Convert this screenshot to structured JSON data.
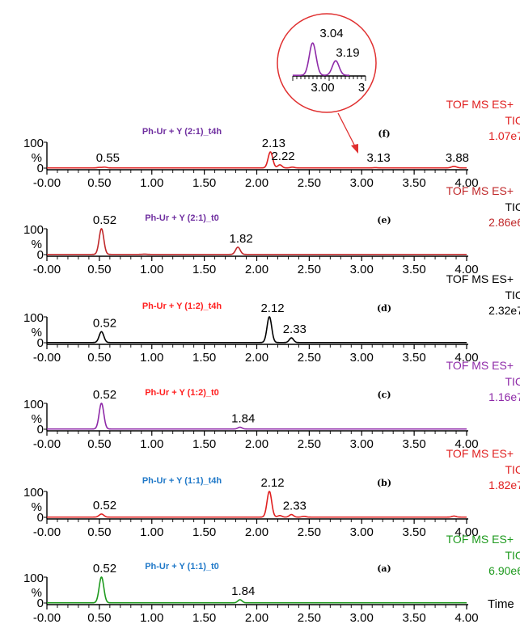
{
  "chart_data": [
    {
      "type": "line",
      "panel": "(f)",
      "title": "Ph-Ur + Y (2:1)_t4h",
      "title_color": "#7030a0",
      "trace_color": "#e02020",
      "detector": [
        "TOF MS ES+",
        "TIC",
        "1.07e7"
      ],
      "detector_colors": [
        "#e02020",
        "#e02020",
        "#e02020"
      ],
      "peaks": [
        {
          "x": 0.5,
          "y": 2,
          "w": 0.02
        },
        {
          "x": 0.55,
          "y": 3,
          "w": 0.02
        },
        {
          "x": 2.13,
          "y": 62,
          "w": 0.022
        },
        {
          "x": 2.22,
          "y": 12,
          "w": 0.02
        },
        {
          "x": 2.34,
          "y": 3,
          "w": 0.02
        },
        {
          "x": 3.13,
          "y": 1,
          "w": 0.02
        },
        {
          "x": 3.88,
          "y": 6,
          "w": 0.025
        }
      ],
      "peak_labels": [
        {
          "x": 0.55,
          "text": "0.55"
        },
        {
          "x": 2.13,
          "text": "2.13"
        },
        {
          "x": 2.22,
          "text": "2.22"
        },
        {
          "x": 3.13,
          "text": "3.13"
        },
        {
          "x": 3.88,
          "text": "3.88"
        }
      ],
      "inset": {
        "peaks": [
          {
            "x": 3.04,
            "y": 100
          },
          {
            "x": 3.19,
            "y": 45
          }
        ],
        "peak_labels": [
          "3.04",
          "3.19"
        ],
        "tick_labels": [
          "3.00",
          "3"
        ]
      }
    },
    {
      "type": "line",
      "panel": "(e)",
      "title": "Ph-Ur + Y (2:1)_t0",
      "title_color": "#7030a0",
      "trace_color": "#c0282a",
      "detector": [
        "TOF MS ES+",
        "TIC",
        "2.86e6"
      ],
      "detector_colors": [
        "#c0282a",
        "#000000",
        "#c0282a"
      ],
      "peaks": [
        {
          "x": 0.52,
          "y": 100,
          "w": 0.022
        },
        {
          "x": 0.93,
          "y": 1,
          "w": 0.02
        },
        {
          "x": 1.82,
          "y": 28,
          "w": 0.022
        }
      ],
      "peak_labels": [
        {
          "x": 0.52,
          "text": "0.52"
        },
        {
          "x": 1.82,
          "text": "1.82"
        }
      ]
    },
    {
      "type": "line",
      "panel": "(d)",
      "title": "Ph-Ur + Y (1:2)_t4h",
      "title_color": "#ff2020",
      "trace_color": "#000000",
      "detector": [
        "TOF MS ES+",
        "TIC",
        "2.32e7"
      ],
      "detector_colors": [
        "#000000",
        "#000000",
        "#000000"
      ],
      "peaks": [
        {
          "x": 0.52,
          "y": 42,
          "w": 0.022
        },
        {
          "x": 2.12,
          "y": 100,
          "w": 0.022
        },
        {
          "x": 2.33,
          "y": 18,
          "w": 0.02
        }
      ],
      "peak_labels": [
        {
          "x": 0.52,
          "text": "0.52"
        },
        {
          "x": 2.12,
          "text": "2.12"
        },
        {
          "x": 2.33,
          "text": "2.33"
        }
      ]
    },
    {
      "type": "line",
      "panel": "(c)",
      "title": "Ph-Ur + Y (1:2)_t0",
      "title_color": "#ff2020",
      "trace_color": "#8e2aa8",
      "detector": [
        "TOF MS ES+",
        "TIC",
        "1.16e7"
      ],
      "detector_colors": [
        "#8e2aa8",
        "#8e2aa8",
        "#8e2aa8"
      ],
      "peaks": [
        {
          "x": 0.52,
          "y": 100,
          "w": 0.022
        },
        {
          "x": 1.84,
          "y": 7,
          "w": 0.02
        }
      ],
      "peak_labels": [
        {
          "x": 0.52,
          "text": "0.52"
        },
        {
          "x": 1.84,
          "text": "1.84"
        }
      ]
    },
    {
      "type": "line",
      "panel": "(b)",
      "title": "Ph-Ur + Y (1:1)_t4h",
      "title_color": "#1f78c8",
      "trace_color": "#e02020",
      "detector": [
        "TOF MS ES+",
        "TIC",
        "1.82e7"
      ],
      "detector_colors": [
        "#e02020",
        "#e02020",
        "#e02020"
      ],
      "peaks": [
        {
          "x": 0.52,
          "y": 12,
          "w": 0.022
        },
        {
          "x": 2.12,
          "y": 100,
          "w": 0.022
        },
        {
          "x": 2.22,
          "y": 6,
          "w": 0.02
        },
        {
          "x": 2.33,
          "y": 10,
          "w": 0.02
        },
        {
          "x": 2.45,
          "y": 3,
          "w": 0.02
        },
        {
          "x": 3.88,
          "y": 4,
          "w": 0.02
        }
      ],
      "peak_labels": [
        {
          "x": 0.52,
          "text": "0.52"
        },
        {
          "x": 2.12,
          "text": "2.12"
        },
        {
          "x": 2.33,
          "text": "2.33"
        }
      ]
    },
    {
      "type": "line",
      "panel": "(a)",
      "title": "Ph-Ur + Y (1:1)_t0",
      "title_color": "#1f78c8",
      "trace_color": "#1e9a1e",
      "detector": [
        "TOF MS ES+",
        "TIC",
        "6.90e6"
      ],
      "detector_colors": [
        "#1e9a1e",
        "#1e9a1e",
        "#1e9a1e"
      ],
      "peaks": [
        {
          "x": 0.52,
          "y": 100,
          "w": 0.022
        },
        {
          "x": 1.84,
          "y": 12,
          "w": 0.02
        }
      ],
      "peak_labels": [
        {
          "x": 0.52,
          "text": "0.52"
        },
        {
          "x": 1.84,
          "text": "1.84"
        }
      ],
      "xlabel": "Time"
    }
  ],
  "shared": {
    "x_tick_labels": [
      "-0.00",
      "0.50",
      "1.00",
      "1.50",
      "2.00",
      "2.50",
      "3.00",
      "3.50",
      "4.00"
    ],
    "xlim": [
      0,
      4
    ],
    "ylim": [
      0,
      100
    ],
    "y_tick_labels": [
      "100",
      "%",
      "0"
    ],
    "inset_color": "#e03030"
  }
}
